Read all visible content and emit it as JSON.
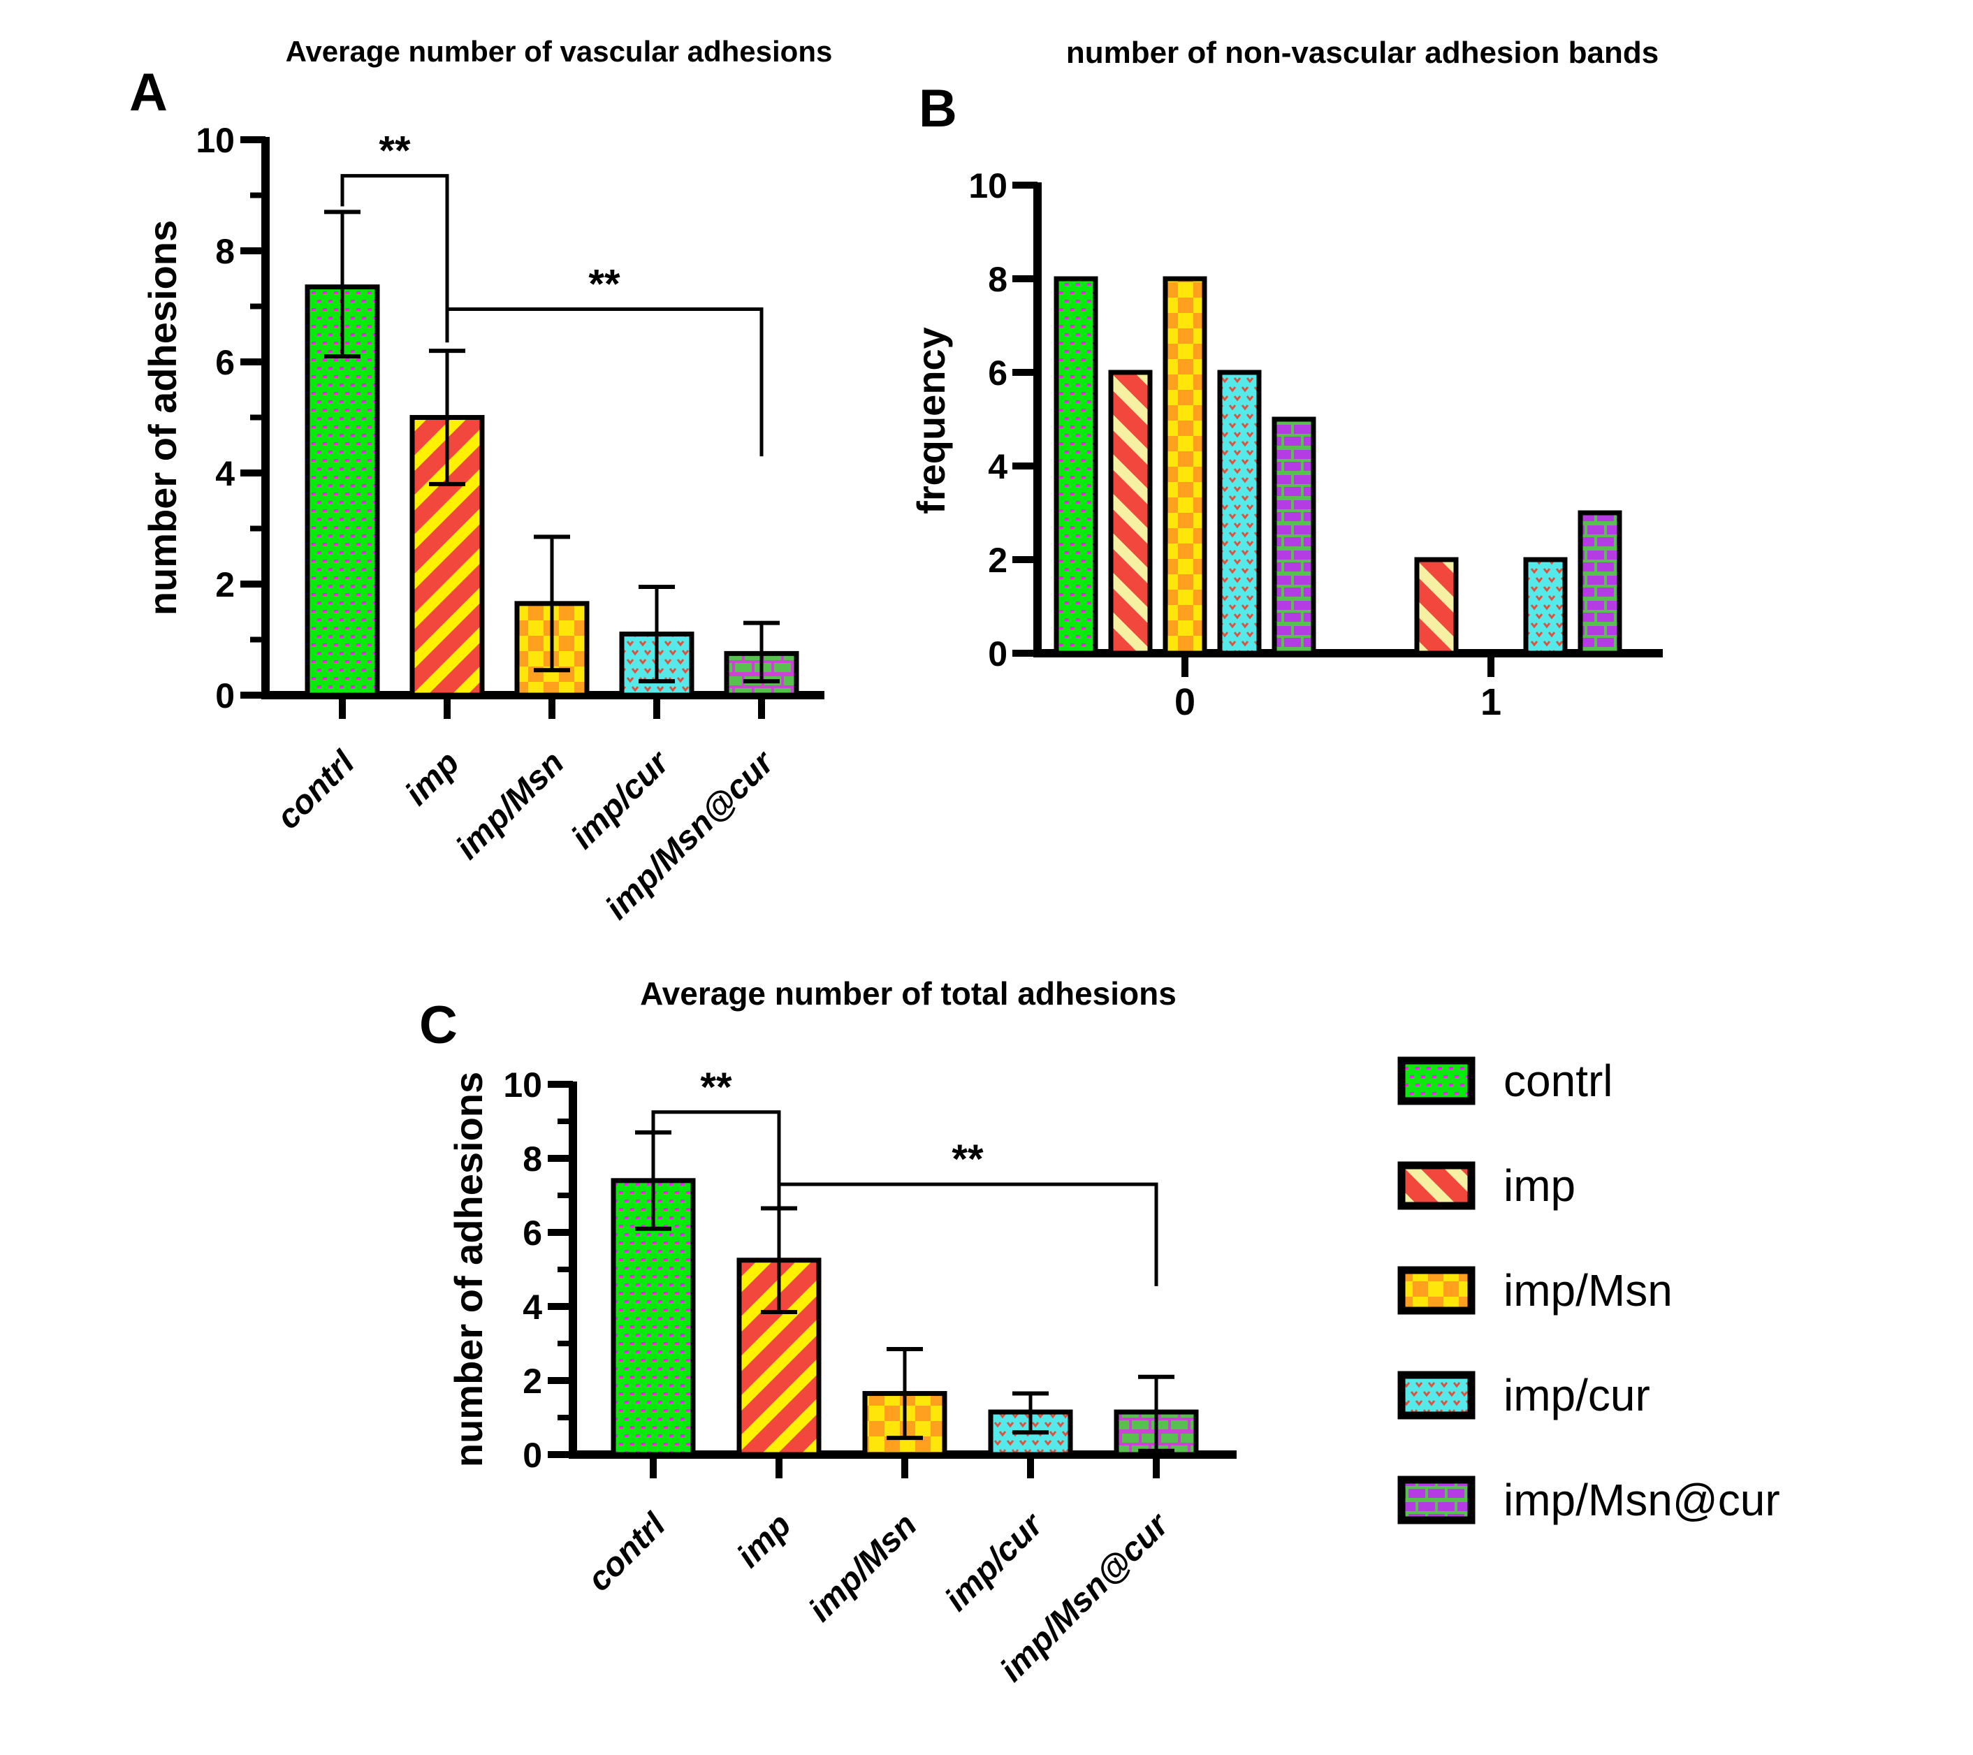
{
  "colors": {
    "green": "#0BE80B",
    "magenta_dot": "#E22BE2",
    "red": "#F2473D",
    "stripe_yellow": "#FFF100",
    "stripe_cream": "#F6F0A3",
    "check_yellow": "#FFE60A",
    "check_orange": "#FFA01E",
    "cyan": "#55E9E9",
    "cyan_mark_red": "#E0503C",
    "brick_green": "#58C04E",
    "brick_purple": "#B53BE2",
    "mortar_purple": "#CC44D6",
    "axis_black": "#000000"
  },
  "chart_data": [
    {
      "id": "A",
      "panel_label": "A",
      "type": "bar",
      "title": "Average number of vascular adhesions",
      "xlabel": "",
      "ylabel": "number of adhesions",
      "ylim": [
        0,
        10
      ],
      "yticks": [
        0,
        2,
        4,
        6,
        8,
        10
      ],
      "minor_ticks": [
        1,
        3,
        5,
        7,
        9
      ],
      "grid": false,
      "categories": [
        "contrl",
        "imp",
        "imp/Msn",
        "imp/cur",
        "imp/Msn@cur"
      ],
      "values": [
        7.35,
        5.0,
        1.65,
        1.1,
        0.75
      ],
      "error_low": [
        6.1,
        3.8,
        0.45,
        0.25,
        0.25
      ],
      "error_high": [
        8.7,
        6.2,
        2.85,
        1.95,
        1.3
      ],
      "patterns": [
        "dots-green",
        "stripes-red-yellow",
        "check-yellow",
        "dots-cyan",
        "bricks-green"
      ],
      "significance": [
        {
          "from": 0,
          "to": 1,
          "label": "**",
          "height": 9.35,
          "drop_from": 8.8,
          "drop_to": 6.35
        },
        {
          "from": 1,
          "to": 4,
          "label": "**",
          "height": 6.95,
          "drop_from": 6.35,
          "drop_to": 4.3
        }
      ]
    },
    {
      "id": "B",
      "panel_label": "B",
      "type": "grouped_bar",
      "title": "number of non-vascular adhesion bands",
      "xlabel": "",
      "ylabel": "frequency",
      "ylim": [
        0,
        10
      ],
      "yticks": [
        0,
        2,
        4,
        6,
        8,
        10
      ],
      "grid": false,
      "group_labels": [
        "0",
        "1"
      ],
      "series": [
        {
          "name": "contrl",
          "pattern": "dots-green",
          "values": [
            8,
            0
          ]
        },
        {
          "name": "imp",
          "pattern": "stripes-red-cream",
          "values": [
            6,
            2
          ]
        },
        {
          "name": "imp/Msn",
          "pattern": "check-yellow",
          "values": [
            8,
            0
          ]
        },
        {
          "name": "imp/cur",
          "pattern": "dots-cyan",
          "values": [
            6,
            2
          ]
        },
        {
          "name": "imp/Msn@cur",
          "pattern": "bricks-purple",
          "values": [
            5,
            3
          ]
        }
      ]
    },
    {
      "id": "C",
      "panel_label": "C",
      "type": "bar",
      "title": "Average number of total adhesions",
      "xlabel": "",
      "ylabel": "number of adhesions",
      "ylim": [
        0,
        10
      ],
      "yticks": [
        0,
        2,
        4,
        6,
        8,
        10
      ],
      "minor_ticks": [
        1,
        3,
        5,
        7,
        9
      ],
      "grid": false,
      "categories": [
        "contrl",
        "imp",
        "imp/Msn",
        "imp/cur",
        "imp/Msn@cur"
      ],
      "values": [
        7.4,
        5.25,
        1.65,
        1.15,
        1.15
      ],
      "error_low": [
        6.1,
        3.85,
        0.45,
        0.6,
        0.1
      ],
      "error_high": [
        8.7,
        6.65,
        2.85,
        1.65,
        2.1
      ],
      "patterns": [
        "dots-green",
        "stripes-red-yellow",
        "check-yellow",
        "dots-cyan",
        "bricks-green"
      ],
      "significance": [
        {
          "from": 0,
          "to": 1,
          "label": "**",
          "height": 9.25,
          "drop_from": 8.75,
          "drop_to": 7.0
        },
        {
          "from": 1,
          "to": 4,
          "label": "**",
          "height": 7.3,
          "drop_from": 6.7,
          "drop_to": 4.55
        }
      ]
    }
  ],
  "legend": {
    "items": [
      {
        "label": "contrl",
        "pattern": "dots-green"
      },
      {
        "label": "imp",
        "pattern": "stripes-red-cream"
      },
      {
        "label": "imp/Msn",
        "pattern": "check-yellow"
      },
      {
        "label": "imp/cur",
        "pattern": "dots-cyan"
      },
      {
        "label": "imp/Msn@cur",
        "pattern": "bricks-purple"
      }
    ]
  }
}
